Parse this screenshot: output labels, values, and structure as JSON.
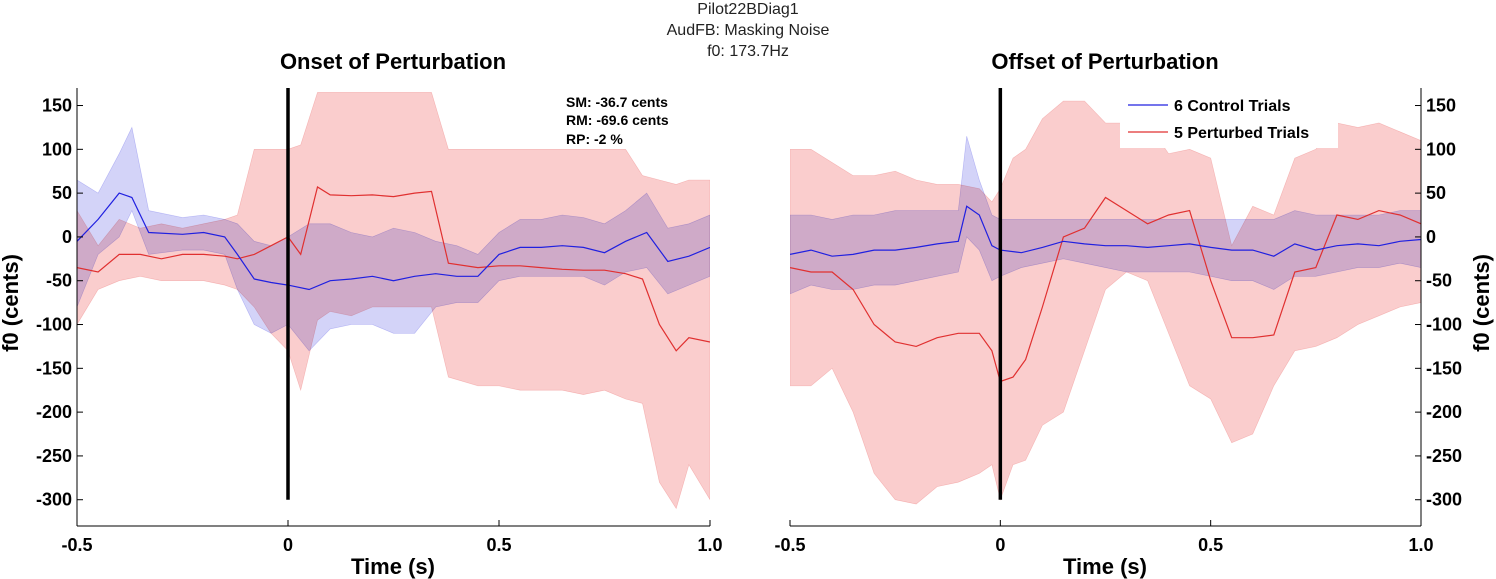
{
  "figure": {
    "title_lines": [
      "Pilot22BDiag1",
      "AudFB: Masking Noise",
      "f0: 173.7Hz"
    ]
  },
  "colors": {
    "control_line": "#2020e0",
    "control_band": "#c4c4f6",
    "perturbed_line": "#e03030",
    "perturbed_band": "#f9c8c8",
    "overlap_band": "#d8b8ea",
    "marker": "#000000"
  },
  "legend": {
    "entries": [
      "6 Control Trials",
      "5 Perturbed Trials"
    ],
    "location": "top-right of right panel"
  },
  "stats": {
    "sm": "SM: -36.7 cents",
    "rm": "RM: -69.6 cents",
    "rp": "RP: -2 %"
  },
  "chart_data": [
    {
      "type": "line",
      "title": "Onset of Perturbation",
      "xlabel": "Time (s)",
      "ylabel": "f0 (cents)",
      "xlim": [
        -0.5,
        1.0
      ],
      "ylim": [
        -330,
        170
      ],
      "xticks": [
        -0.5,
        0,
        0.5,
        1.0
      ],
      "xtick_labels": [
        "-0.5",
        "0",
        "0.5",
        "1.0"
      ],
      "yticks": [
        150,
        100,
        50,
        0,
        -50,
        -100,
        -150,
        -200,
        -250,
        -300
      ],
      "ytick_labels": [
        "150",
        "100",
        "50",
        "0",
        "-50",
        "-100",
        "-150",
        "-200",
        "-250",
        "-300"
      ],
      "marker_x": 0,
      "series": [
        {
          "name": "6 Control Trials",
          "x": [
            -0.5,
            -0.45,
            -0.4,
            -0.37,
            -0.33,
            -0.25,
            -0.2,
            -0.15,
            -0.12,
            -0.08,
            -0.04,
            0,
            0.05,
            0.1,
            0.15,
            0.2,
            0.25,
            0.3,
            0.35,
            0.4,
            0.45,
            0.5,
            0.55,
            0.6,
            0.65,
            0.7,
            0.75,
            0.8,
            0.85,
            0.9,
            0.95,
            1.0
          ],
          "mean": [
            -5,
            20,
            50,
            45,
            5,
            3,
            5,
            0,
            -20,
            -48,
            -52,
            -55,
            -60,
            -50,
            -48,
            -45,
            -50,
            -45,
            -42,
            -45,
            -45,
            -20,
            -12,
            -12,
            -10,
            -12,
            -18,
            -5,
            5,
            -28,
            -22,
            -12
          ],
          "lower": [
            -80,
            -20,
            0,
            30,
            -20,
            -15,
            -15,
            -20,
            -60,
            -100,
            -110,
            -100,
            -130,
            -105,
            -100,
            -100,
            -110,
            -110,
            -80,
            -75,
            -75,
            -50,
            -45,
            -45,
            -45,
            -45,
            -55,
            -40,
            -35,
            -65,
            -55,
            -45
          ],
          "upper": [
            65,
            50,
            95,
            125,
            30,
            22,
            25,
            20,
            15,
            -5,
            -10,
            0,
            15,
            15,
            5,
            0,
            10,
            5,
            -5,
            -10,
            -20,
            5,
            20,
            20,
            25,
            22,
            15,
            30,
            50,
            10,
            15,
            25
          ]
        },
        {
          "name": "5 Perturbed Trials",
          "x": [
            -0.5,
            -0.45,
            -0.4,
            -0.35,
            -0.3,
            -0.25,
            -0.2,
            -0.15,
            -0.12,
            -0.08,
            -0.04,
            0,
            0.03,
            0.07,
            0.1,
            0.15,
            0.2,
            0.25,
            0.3,
            0.34,
            0.38,
            0.45,
            0.5,
            0.55,
            0.6,
            0.65,
            0.7,
            0.75,
            0.8,
            0.84,
            0.88,
            0.92,
            0.95,
            1.0
          ],
          "mean": [
            -35,
            -40,
            -20,
            -20,
            -25,
            -20,
            -20,
            -22,
            -25,
            -20,
            -10,
            0,
            -20,
            57,
            48,
            47,
            48,
            46,
            50,
            52,
            -30,
            -35,
            -33,
            -33,
            -35,
            -37,
            -38,
            -38,
            -42,
            -48,
            -100,
            -130,
            -115,
            -120
          ],
          "lower": [
            -100,
            -60,
            -50,
            -45,
            -50,
            -50,
            -50,
            -55,
            -60,
            -80,
            -110,
            -130,
            -175,
            -95,
            -85,
            -90,
            -80,
            -80,
            -80,
            -80,
            -160,
            -170,
            -170,
            -175,
            -175,
            -175,
            -180,
            -175,
            -185,
            -190,
            -280,
            -310,
            -260,
            -300
          ],
          "upper": [
            30,
            -10,
            20,
            10,
            15,
            10,
            15,
            20,
            25,
            100,
            100,
            100,
            105,
            165,
            165,
            165,
            165,
            165,
            165,
            165,
            100,
            100,
            100,
            100,
            100,
            100,
            100,
            100,
            100,
            70,
            65,
            60,
            65,
            65
          ]
        }
      ]
    },
    {
      "type": "line",
      "title": "Offset of Perturbation",
      "xlabel": "Time (s)",
      "ylabel": "f0 (cents)",
      "xlim": [
        -0.5,
        1.0
      ],
      "ylim": [
        -330,
        170
      ],
      "xticks": [
        -0.5,
        0,
        0.5,
        1.0
      ],
      "xtick_labels": [
        "-0.5",
        "0",
        "0.5",
        "1.0"
      ],
      "yticks": [
        150,
        100,
        50,
        0,
        -50,
        -100,
        -150,
        -200,
        -250,
        -300
      ],
      "ytick_labels": [
        "150",
        "100",
        "50",
        "0",
        "-50",
        "-100",
        "-150",
        "-200",
        "-250",
        "-300"
      ],
      "marker_x": 0,
      "series": [
        {
          "name": "6 Control Trials",
          "x": [
            -0.5,
            -0.45,
            -0.4,
            -0.35,
            -0.3,
            -0.25,
            -0.2,
            -0.15,
            -0.1,
            -0.08,
            -0.05,
            -0.02,
            0,
            0.05,
            0.1,
            0.15,
            0.2,
            0.25,
            0.3,
            0.35,
            0.4,
            0.45,
            0.5,
            0.55,
            0.6,
            0.65,
            0.7,
            0.75,
            0.8,
            0.85,
            0.9,
            0.95,
            1.0
          ],
          "mean": [
            -20,
            -15,
            -22,
            -20,
            -15,
            -15,
            -12,
            -8,
            -5,
            35,
            25,
            -10,
            -15,
            -18,
            -12,
            -5,
            -8,
            -10,
            -10,
            -12,
            -10,
            -8,
            -12,
            -15,
            -15,
            -22,
            -8,
            -15,
            -10,
            -8,
            -10,
            -5,
            -3
          ],
          "lower": [
            -65,
            -55,
            -60,
            -60,
            -55,
            -55,
            -50,
            -45,
            -40,
            0,
            -15,
            -50,
            -45,
            -35,
            -30,
            -25,
            -30,
            -35,
            -40,
            -40,
            -40,
            -40,
            -45,
            -50,
            -50,
            -60,
            -45,
            -45,
            -40,
            -35,
            -35,
            -30,
            -35
          ],
          "upper": [
            25,
            25,
            20,
            25,
            25,
            30,
            30,
            30,
            30,
            115,
            65,
            25,
            20,
            20,
            20,
            20,
            20,
            20,
            20,
            20,
            20,
            20,
            20,
            20,
            20,
            20,
            30,
            25,
            25,
            25,
            25,
            30,
            30
          ]
        },
        {
          "name": "5 Perturbed Trials",
          "x": [
            -0.5,
            -0.45,
            -0.4,
            -0.35,
            -0.3,
            -0.25,
            -0.2,
            -0.15,
            -0.1,
            -0.05,
            -0.02,
            0,
            0.03,
            0.06,
            0.1,
            0.15,
            0.2,
            0.25,
            0.3,
            0.35,
            0.4,
            0.45,
            0.5,
            0.55,
            0.6,
            0.65,
            0.7,
            0.75,
            0.8,
            0.85,
            0.9,
            0.95,
            1.0
          ],
          "mean": [
            -35,
            -40,
            -40,
            -60,
            -100,
            -120,
            -125,
            -115,
            -110,
            -110,
            -130,
            -165,
            -160,
            -140,
            -80,
            0,
            10,
            45,
            30,
            15,
            25,
            30,
            -50,
            -115,
            -115,
            -112,
            -40,
            -35,
            25,
            20,
            30,
            25,
            15
          ],
          "lower": [
            -170,
            -170,
            -150,
            -200,
            -270,
            -300,
            -305,
            -285,
            -280,
            -270,
            -260,
            -300,
            -260,
            -255,
            -215,
            -200,
            -130,
            -60,
            -40,
            -50,
            -110,
            -170,
            -185,
            -235,
            -225,
            -170,
            -130,
            -125,
            -115,
            -100,
            -90,
            -80,
            -75
          ],
          "upper": [
            100,
            100,
            85,
            70,
            70,
            75,
            65,
            60,
            60,
            55,
            40,
            55,
            90,
            100,
            135,
            155,
            155,
            130,
            130,
            130,
            95,
            100,
            90,
            -10,
            35,
            25,
            90,
            100,
            130,
            125,
            130,
            120,
            110
          ]
        }
      ]
    }
  ]
}
